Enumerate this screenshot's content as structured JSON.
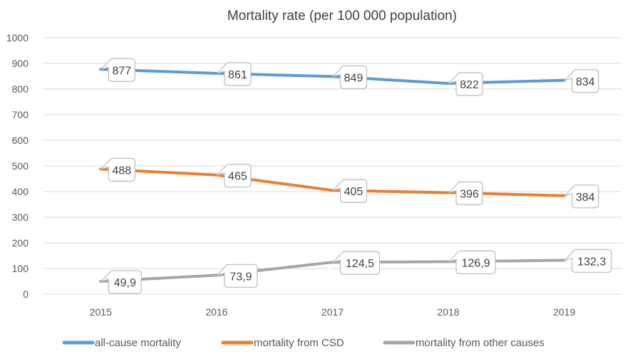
{
  "chart_data": {
    "type": "line",
    "title": "Mortality rate (per 100 000 population)",
    "xlabel": "",
    "ylabel": "",
    "categories": [
      "2015",
      "2016",
      "2017",
      "2018",
      "2019"
    ],
    "ylim": [
      0,
      1000
    ],
    "yticks": [
      0,
      100,
      200,
      300,
      400,
      500,
      600,
      700,
      800,
      900,
      1000
    ],
    "grid": true,
    "legend_position": "bottom",
    "series": [
      {
        "name": "all-cause mortality",
        "color": "#5B9BD5",
        "values": [
          877,
          861,
          849,
          822,
          834
        ],
        "labels": [
          "877",
          "861",
          "849",
          "822",
          "834"
        ]
      },
      {
        "name": "mortality from CSD",
        "color": "#ED7D31",
        "values": [
          488,
          465,
          405,
          396,
          384
        ],
        "labels": [
          "488",
          "465",
          "405",
          "396",
          "384"
        ]
      },
      {
        "name": "mortality from other causes",
        "color": "#A5A5A5",
        "values": [
          49.9,
          73.9,
          124.5,
          126.9,
          132.3
        ],
        "labels": [
          "49,9",
          "73,9",
          "124,5",
          "126,9",
          "132,3"
        ]
      }
    ]
  }
}
